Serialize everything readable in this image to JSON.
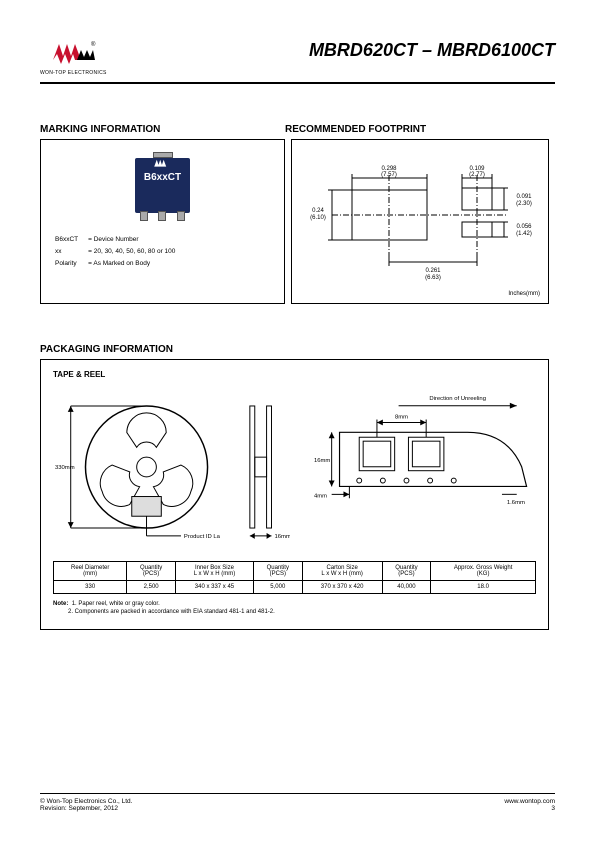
{
  "header": {
    "company_sub": "WON-TOP ELECTRONICS",
    "part_title": "MBRD620CT – MBRD6100CT"
  },
  "logo_colors": {
    "red": "#c8102e",
    "black": "#000000"
  },
  "sections": {
    "marking_title": "MARKING INFORMATION",
    "footprint_title": "RECOMMENDED FOOTPRINT",
    "packaging_title": "PACKAGING INFORMATION",
    "tape_reel_title": "TAPE & REEL"
  },
  "marking": {
    "chip_text": "B6xxCT",
    "chip_bg": "#1a2a5c",
    "legend": [
      {
        "k": "B6xxCT",
        "v": "= Device Number"
      },
      {
        "k": "xx",
        "v": "= 20, 30, 40, 50, 60, 80 or 100"
      },
      {
        "k": "Polarity",
        "v": "= As Marked on Body"
      }
    ]
  },
  "footprint": {
    "unit_label": "Inches(mm)",
    "dims": {
      "big_w_in": "0.298",
      "big_w_mm": "(7.57)",
      "small_w_in": "0.109",
      "small_w_mm": "(2.77)",
      "h_in": "0.24",
      "h_mm": "(6.10)",
      "gap_center_in": "0.261",
      "gap_center_mm": "(6.63)",
      "small_h1_in": "0.091",
      "small_h1_mm": "(2.30)",
      "small_h2_in": "0.056",
      "small_h2_mm": "(1.42)"
    }
  },
  "packaging": {
    "reel_diameter_label": "330mm",
    "product_id_label": "Product ID Label",
    "reel_width_label": "16mm",
    "tape_pocket_label": "16mm",
    "unreel_label": "Direction of Unreeling",
    "pitch_label": "8mm",
    "hole_offset_label": "4mm",
    "thickness_label": "1.6mm"
  },
  "tape_table": {
    "columns": [
      "Reel Diameter\n(mm)",
      "Quantity\n(PCS)",
      "Inner Box Size\nL x W x H (mm)",
      "Quantity\n(PCS)",
      "Carton Size\nL x W x H (mm)",
      "Quantity\n(PCS)",
      "Approx. Gross Weight\n(KG)"
    ],
    "rows": [
      [
        "330",
        "2,500",
        "340 x 337 x 45",
        "5,000",
        "370 x 370 x 420",
        "40,000",
        "18.0"
      ]
    ]
  },
  "notes": {
    "label": "Note:",
    "items": [
      "1. Paper reel, white or gray color.",
      "2. Components are packed in accordance with EIA standard 481-1 and 481-2."
    ]
  },
  "footer": {
    "copyright": "© Won-Top Electronics Co., Ltd.",
    "revision": "Revision: September, 2012",
    "url": "www.wontop.com",
    "page": "3"
  }
}
